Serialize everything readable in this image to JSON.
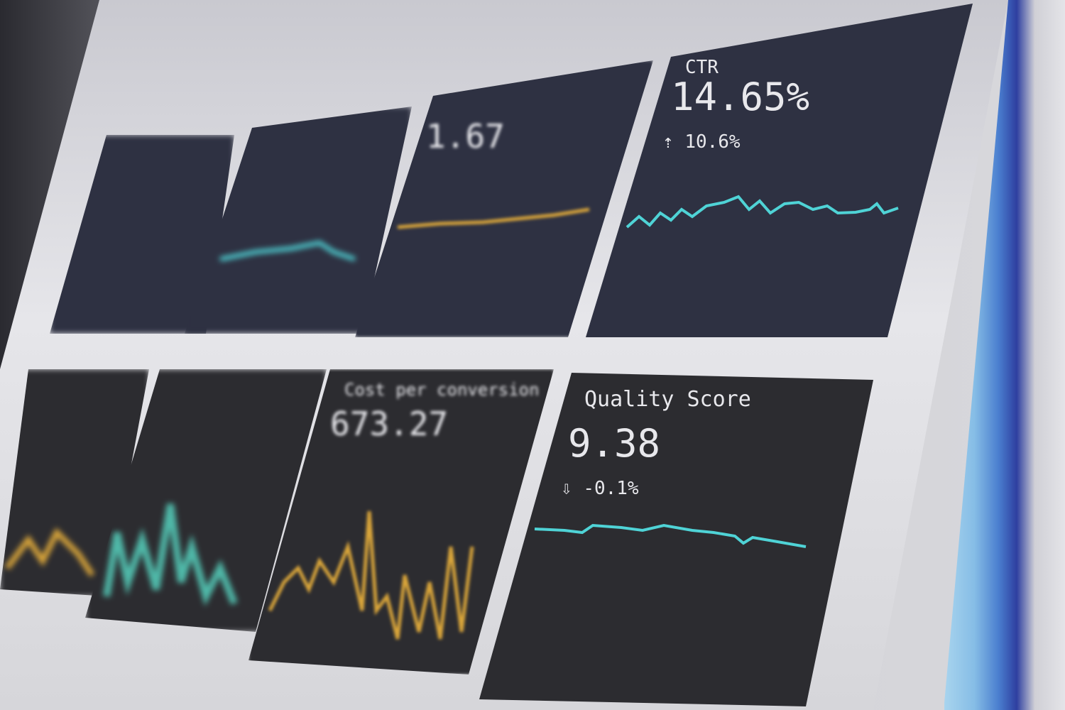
{
  "colors": {
    "teal": "#4fd3d6",
    "amber": "#d9a53a",
    "card": "#2e3142"
  },
  "cards": [
    {
      "label": "",
      "value": "",
      "change": ""
    },
    {
      "label": "",
      "value": "",
      "change": ""
    },
    {
      "label": "",
      "value": "1.67",
      "change": ""
    },
    {
      "label": "CTR",
      "value": "14.65%",
      "change": "10.6%",
      "trend_icon": "arrow-up-icon"
    },
    {
      "label": "",
      "value": "",
      "change": ""
    },
    {
      "label": "",
      "value": "",
      "change": ""
    },
    {
      "label": "Cost per conversion",
      "value": "673.27",
      "change": ""
    },
    {
      "label": "Quality Score",
      "value": "9.38",
      "change": "-0.1%",
      "trend_icon": "arrow-down-icon"
    }
  ]
}
